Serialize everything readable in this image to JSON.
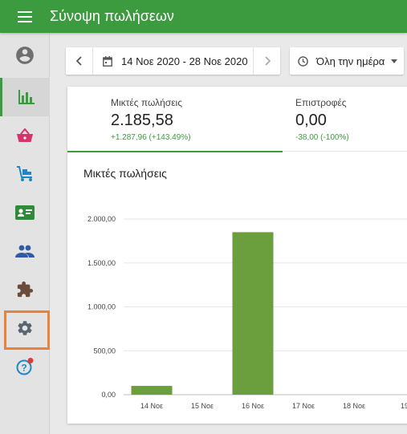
{
  "appbar": {
    "title": "Σύνοψη πωλήσεων",
    "menu_icon": "menu-icon"
  },
  "sidebar": {
    "items": [
      {
        "name": "account",
        "icon": "account-circle-icon",
        "color": "#6f6f6f"
      },
      {
        "name": "analytics",
        "icon": "bar-chart-icon",
        "color": "#3c9a3f",
        "active": true
      },
      {
        "name": "orders",
        "icon": "basket-icon",
        "color": "#d6336c"
      },
      {
        "name": "products",
        "icon": "cart-flatbed-icon",
        "color": "#1e88c7"
      },
      {
        "name": "customers",
        "icon": "id-card-icon",
        "color": "#2e8b3a"
      },
      {
        "name": "users",
        "icon": "people-icon",
        "color": "#2f5aa8"
      },
      {
        "name": "extensions",
        "icon": "puzzle-icon",
        "color": "#6b4b3a"
      },
      {
        "name": "settings",
        "icon": "gear-icon",
        "color": "#5a6470",
        "focused": true
      },
      {
        "name": "help",
        "icon": "help-icon",
        "color": "#1e88c7",
        "badge_color": "#e53935"
      }
    ]
  },
  "toolbar": {
    "date_range": "14 Νοε 2020 - 28 Νοε 2020",
    "time_filter": "Όλη την ημέρα"
  },
  "summary": {
    "stats": [
      {
        "label": "Μικτές πωλήσεις",
        "value": "2.185,58",
        "delta": "+1.287,96 (+143.49%)"
      },
      {
        "label": "Επιστροφές",
        "value": "0,00",
        "delta": "-38,00 (-100%)"
      }
    ]
  },
  "chart_data": {
    "type": "bar",
    "title": "Μικτές πωλήσεις",
    "categories": [
      "14 Νοε",
      "15 Νοε",
      "16 Νοε",
      "17 Νοε",
      "18 Νοε",
      "19"
    ],
    "values": [
      100,
      0,
      1850,
      0,
      0,
      0
    ],
    "ylim": [
      0,
      2000
    ],
    "yticks": [
      {
        "value": 0,
        "label": "0,00"
      },
      {
        "value": 500,
        "label": "500,00"
      },
      {
        "value": 1000,
        "label": "1.000,00"
      },
      {
        "value": 1500,
        "label": "1.500,00"
      },
      {
        "value": 2000,
        "label": "2.000,00"
      }
    ],
    "bar_color": "#6b9e3d",
    "grid": true
  }
}
